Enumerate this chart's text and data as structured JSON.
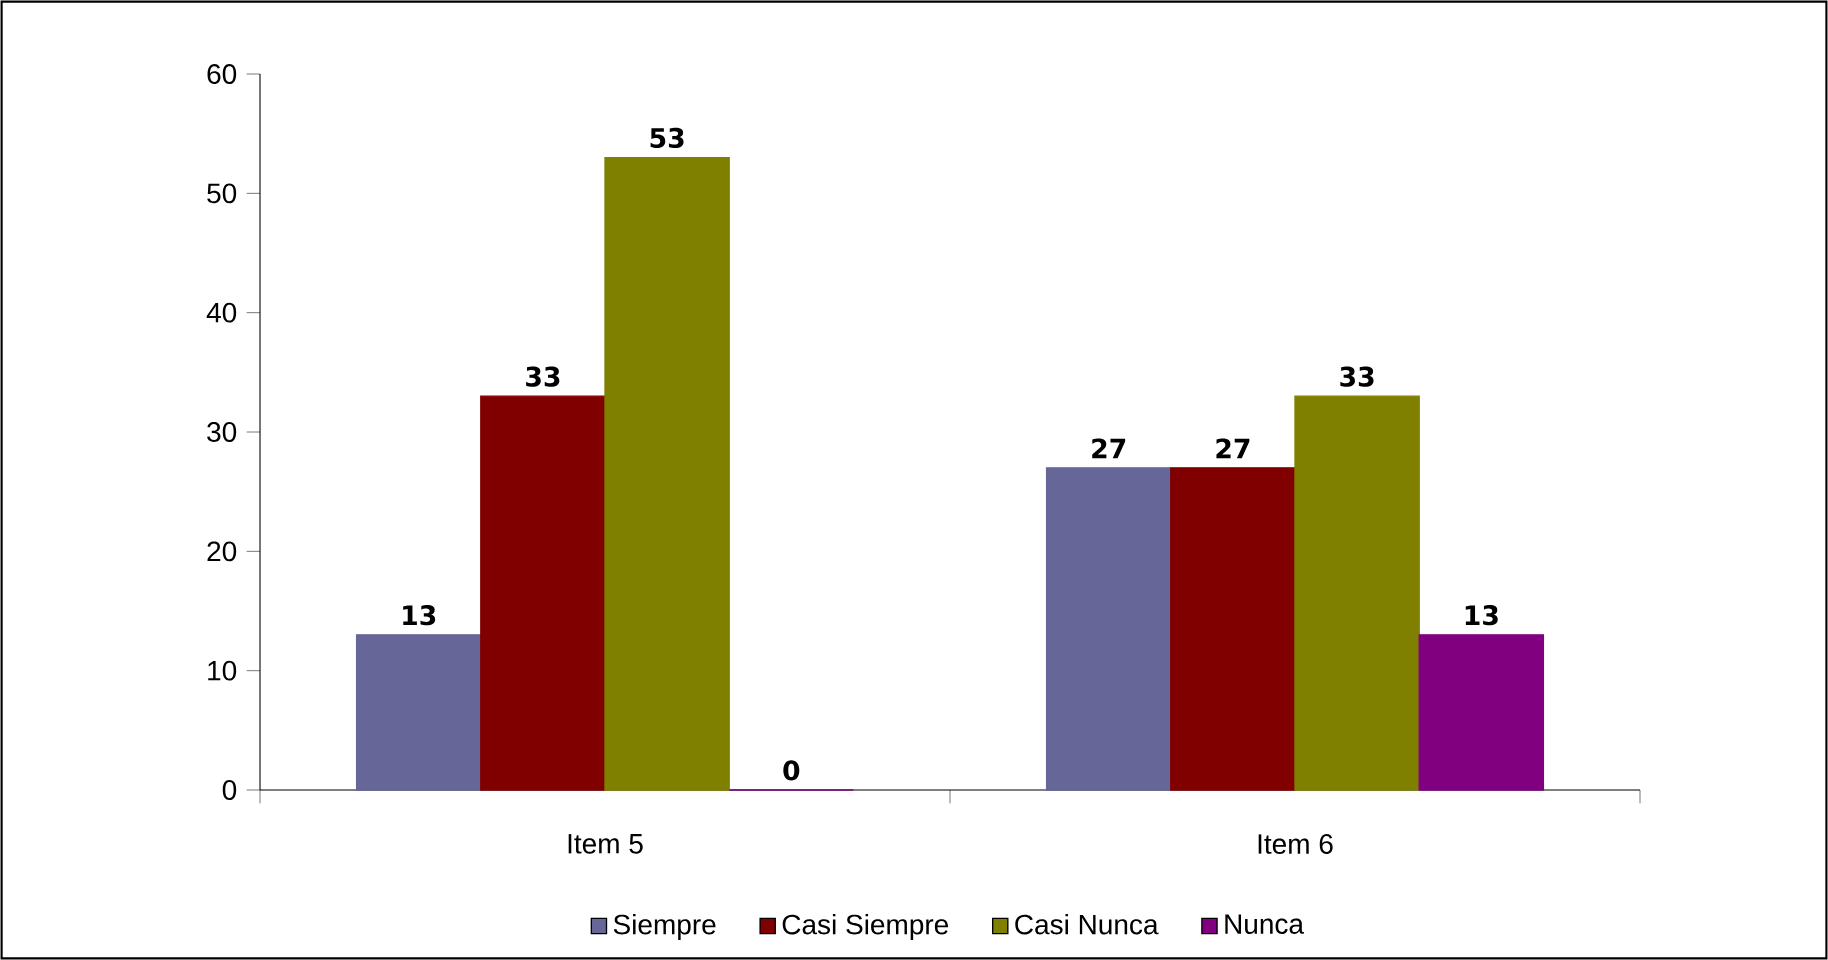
{
  "chart_data": {
    "type": "bar",
    "categories": [
      "Item 5",
      "Item 6"
    ],
    "series": [
      {
        "name": "Siempre",
        "color": "#666699",
        "values": [
          13,
          27
        ],
        "value_labels": [
          "13",
          "27"
        ]
      },
      {
        "name": "Casi Siempre",
        "color": "#800000",
        "values": [
          33,
          27
        ],
        "value_labels": [
          "33",
          "27"
        ]
      },
      {
        "name": "Casi Nunca",
        "color": "#808000",
        "values": [
          53,
          33
        ],
        "value_labels": [
          "53",
          "33"
        ]
      },
      {
        "name": "Nunca",
        "color": "#800080",
        "values": [
          0,
          13
        ],
        "value_labels": [
          "0",
          "13"
        ]
      }
    ],
    "ylim": [
      0,
      60
    ],
    "yticks": [
      0,
      10,
      20,
      30,
      40,
      50,
      60
    ],
    "legend": "bottom",
    "grid": false
  }
}
